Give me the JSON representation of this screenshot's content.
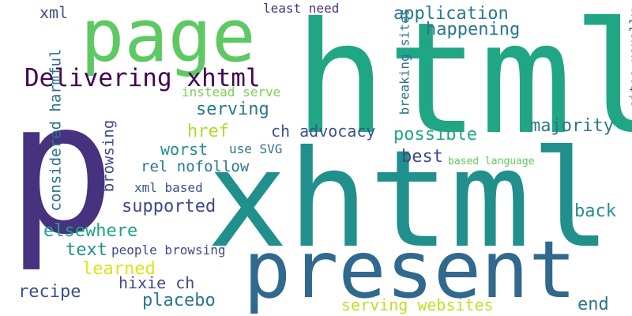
{
  "words": [
    {
      "text": "p",
      "color": "#46327e",
      "rotate": 0
    },
    {
      "text": "html",
      "color": "#21a685",
      "rotate": 0
    },
    {
      "text": "xhtml",
      "color": "#21908d",
      "rotate": 0
    },
    {
      "text": "page",
      "color": "#5ec962",
      "rotate": 0
    },
    {
      "text": "present",
      "color": "#31688e",
      "rotate": 0
    },
    {
      "text": "Delivering xhtml",
      "color": "#440154",
      "rotate": 0
    },
    {
      "text": "xml",
      "color": "#3b528b",
      "rotate": 0
    },
    {
      "text": "least need",
      "color": "#46327e",
      "rotate": 0
    },
    {
      "text": "application",
      "color": "#2a788e",
      "rotate": 0
    },
    {
      "text": "happening",
      "color": "#2a788e",
      "rotate": 0
    },
    {
      "text": "breaking sites",
      "color": "#2c728e",
      "rotate": -90
    },
    {
      "text": "sites usually",
      "color": "#3b528b",
      "rotate": -90
    },
    {
      "text": "instead serve",
      "color": "#7ad151",
      "rotate": 0
    },
    {
      "text": "serving",
      "color": "#2a788e",
      "rotate": 0
    },
    {
      "text": "considered harmful",
      "color": "#2c728e",
      "rotate": -90
    },
    {
      "text": "href",
      "color": "#addc30",
      "rotate": 0
    },
    {
      "text": "ch advocacy",
      "color": "#3b528b",
      "rotate": 0
    },
    {
      "text": "possible",
      "color": "#22a884",
      "rotate": 0
    },
    {
      "text": "majority",
      "color": "#2a788e",
      "rotate": 0
    },
    {
      "text": "browsing",
      "color": "#3e4989",
      "rotate": -90
    },
    {
      "text": "worst",
      "color": "#218f8d",
      "rotate": 0
    },
    {
      "text": "use SVG",
      "color": "#2c728e",
      "rotate": 0
    },
    {
      "text": "best",
      "color": "#3e4989",
      "rotate": 0
    },
    {
      "text": "based language",
      "color": "#5ec962",
      "rotate": 0
    },
    {
      "text": "rel nofollow",
      "color": "#2a788e",
      "rotate": 0
    },
    {
      "text": "xml based",
      "color": "#3b528b",
      "rotate": 0
    },
    {
      "text": "supported",
      "color": "#3e4989",
      "rotate": 0
    },
    {
      "text": "back",
      "color": "#21918c",
      "rotate": 0
    },
    {
      "text": "elsewhere",
      "color": "#1fa187",
      "rotate": 0
    },
    {
      "text": "text",
      "color": "#21918c",
      "rotate": 0
    },
    {
      "text": "people browsing",
      "color": "#3e4989",
      "rotate": 0
    },
    {
      "text": "learned",
      "color": "#dde318",
      "rotate": 0
    },
    {
      "text": "hixie ch",
      "color": "#3e4989",
      "rotate": 0
    },
    {
      "text": "recipe",
      "color": "#3b528b",
      "rotate": 0
    },
    {
      "text": "placebo",
      "color": "#2a788e",
      "rotate": 0
    },
    {
      "text": "serving websites",
      "color": "#c2df23",
      "rotate": 0
    },
    {
      "text": "end",
      "color": "#2c728e",
      "rotate": 0
    }
  ]
}
